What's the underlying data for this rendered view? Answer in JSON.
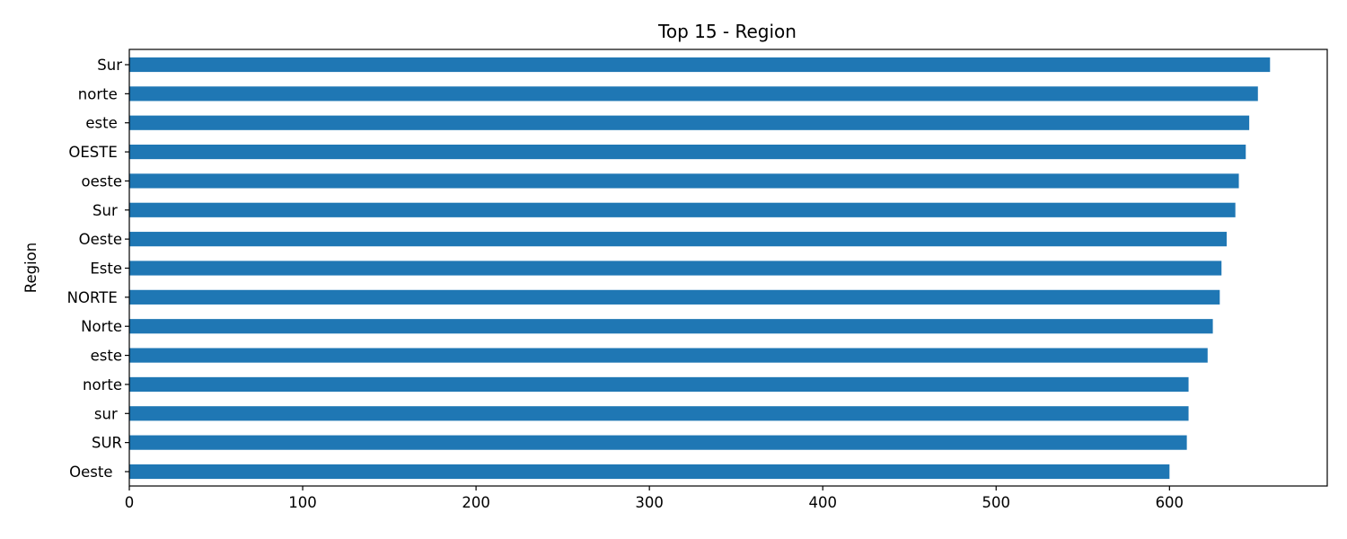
{
  "chart_data": {
    "type": "bar",
    "orientation": "horizontal",
    "title": "Top 15 - Region",
    "xlabel": "",
    "ylabel": "Region",
    "categories": [
      "Sur",
      "norte ",
      "este ",
      "OESTE ",
      "oeste",
      "Sur ",
      "Oeste",
      "Este",
      "NORTE ",
      "Norte",
      "este",
      "norte",
      "sur ",
      "SUR",
      "Oeste  "
    ],
    "values": [
      658,
      651,
      646,
      644,
      640,
      638,
      633,
      630,
      629,
      625,
      622,
      611,
      611,
      610,
      600
    ],
    "xlim": [
      0,
      691
    ],
    "xticks": [
      0,
      100,
      200,
      300,
      400,
      500,
      600
    ],
    "bar_color": "#1f77b4",
    "grid": false,
    "legend": "none"
  }
}
